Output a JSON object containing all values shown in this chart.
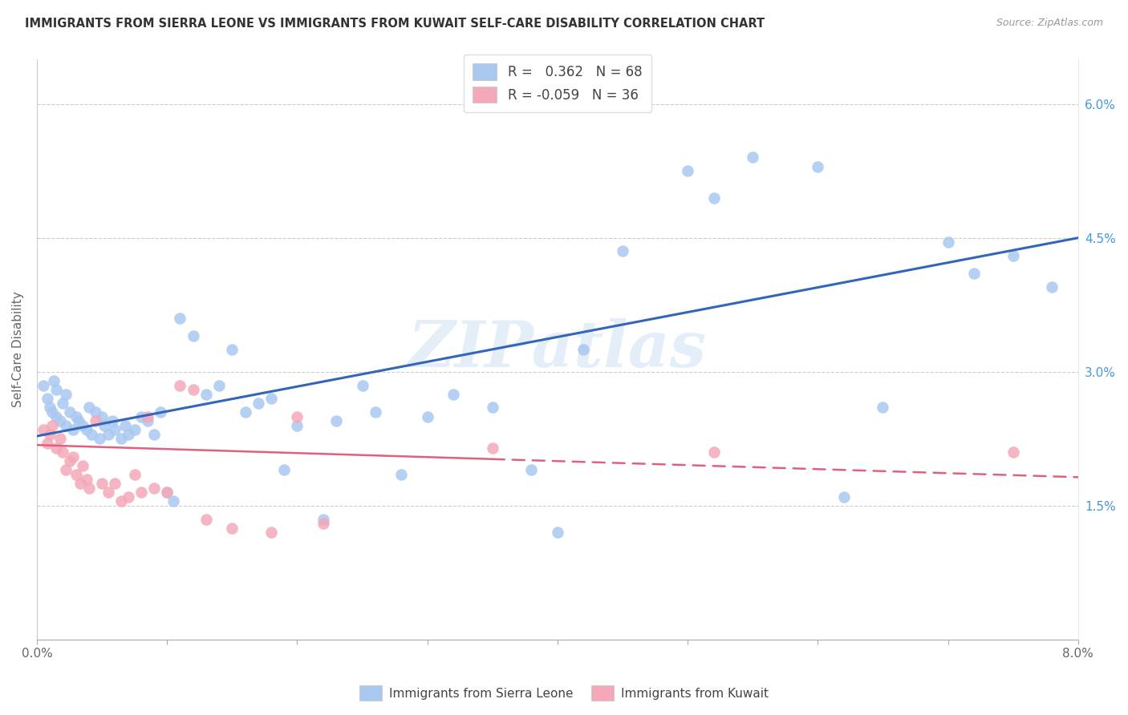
{
  "title": "IMMIGRANTS FROM SIERRA LEONE VS IMMIGRANTS FROM KUWAIT SELF-CARE DISABILITY CORRELATION CHART",
  "source": "Source: ZipAtlas.com",
  "ylabel": "Self-Care Disability",
  "legend_label1": "Immigrants from Sierra Leone",
  "legend_label2": "Immigrants from Kuwait",
  "R1": 0.362,
  "N1": 68,
  "R2": -0.059,
  "N2": 36,
  "color_blue": "#a8c8f0",
  "color_pink": "#f4a8b8",
  "color_blue_line": "#3366bb",
  "color_pink_line": "#e06080",
  "color_blue_text": "#4499dd",
  "watermark": "ZIPatlas",
  "xlim": [
    0.0,
    8.0
  ],
  "ylim": [
    0.0,
    6.5
  ],
  "yticks": [
    1.5,
    3.0,
    4.5,
    6.0
  ],
  "blue_line_y_start": 2.28,
  "blue_line_y_end": 4.5,
  "pink_line_y_start": 2.18,
  "pink_line_y_end": 1.82,
  "pink_solid_end_x": 3.5,
  "xtick_positions": [
    0,
    1,
    2,
    3,
    4,
    5,
    6,
    7,
    8
  ],
  "blue_scatter_x": [
    0.05,
    0.08,
    0.1,
    0.12,
    0.13,
    0.15,
    0.15,
    0.18,
    0.2,
    0.22,
    0.22,
    0.25,
    0.28,
    0.3,
    0.32,
    0.35,
    0.38,
    0.4,
    0.42,
    0.45,
    0.48,
    0.5,
    0.52,
    0.55,
    0.58,
    0.6,
    0.65,
    0.68,
    0.7,
    0.75,
    0.8,
    0.85,
    0.9,
    0.95,
    1.0,
    1.05,
    1.1,
    1.2,
    1.3,
    1.4,
    1.5,
    1.6,
    1.7,
    1.8,
    1.9,
    2.0,
    2.2,
    2.3,
    2.5,
    2.6,
    2.8,
    3.0,
    3.2,
    3.5,
    3.8,
    4.0,
    4.2,
    4.5,
    5.0,
    5.2,
    5.5,
    6.0,
    6.2,
    6.5,
    7.0,
    7.2,
    7.5,
    7.8
  ],
  "blue_scatter_y": [
    2.85,
    2.7,
    2.6,
    2.55,
    2.9,
    2.5,
    2.8,
    2.45,
    2.65,
    2.4,
    2.75,
    2.55,
    2.35,
    2.5,
    2.45,
    2.4,
    2.35,
    2.6,
    2.3,
    2.55,
    2.25,
    2.5,
    2.4,
    2.3,
    2.45,
    2.35,
    2.25,
    2.4,
    2.3,
    2.35,
    2.5,
    2.45,
    2.3,
    2.55,
    1.65,
    1.55,
    3.6,
    3.4,
    2.75,
    2.85,
    3.25,
    2.55,
    2.65,
    2.7,
    1.9,
    2.4,
    1.35,
    2.45,
    2.85,
    2.55,
    1.85,
    2.5,
    2.75,
    2.6,
    1.9,
    1.2,
    3.25,
    4.35,
    5.25,
    4.95,
    5.4,
    5.3,
    1.6,
    2.6,
    4.45,
    4.1,
    4.3,
    3.95
  ],
  "pink_scatter_x": [
    0.05,
    0.08,
    0.1,
    0.12,
    0.15,
    0.18,
    0.2,
    0.22,
    0.25,
    0.28,
    0.3,
    0.33,
    0.35,
    0.38,
    0.4,
    0.45,
    0.5,
    0.55,
    0.6,
    0.65,
    0.7,
    0.75,
    0.8,
    0.85,
    0.9,
    1.0,
    1.1,
    1.2,
    1.3,
    1.5,
    1.8,
    2.0,
    2.2,
    3.5,
    5.2,
    7.5
  ],
  "pink_scatter_y": [
    2.35,
    2.2,
    2.3,
    2.4,
    2.15,
    2.25,
    2.1,
    1.9,
    2.0,
    2.05,
    1.85,
    1.75,
    1.95,
    1.8,
    1.7,
    2.45,
    1.75,
    1.65,
    1.75,
    1.55,
    1.6,
    1.85,
    1.65,
    2.5,
    1.7,
    1.65,
    2.85,
    2.8,
    1.35,
    1.25,
    1.2,
    2.5,
    1.3,
    2.15,
    2.1,
    2.1
  ]
}
